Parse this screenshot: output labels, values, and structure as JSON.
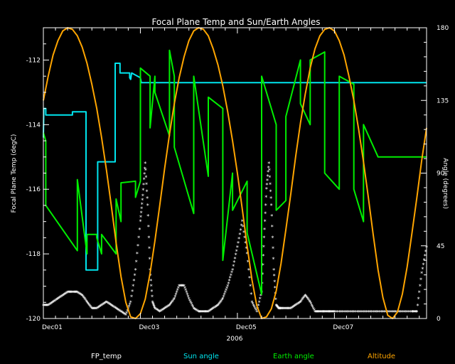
{
  "chart_data": {
    "type": "line",
    "title": "Focal Plane Temp and Sun/Earth Angles",
    "xlabel": "2006",
    "ylabel_left": "Focal Plane Temp (degC)",
    "ylabel_right": "Angle (degrees)",
    "xlim_days": [
      0,
      7.9
    ],
    "ylim_left": [
      -120,
      -111
    ],
    "ylim_right": [
      0,
      180
    ],
    "x_ticks": [
      {
        "day": 0,
        "label": "Dec01"
      },
      {
        "day": 2,
        "label": "Dec03"
      },
      {
        "day": 4,
        "label": "Dec05"
      },
      {
        "day": 6,
        "label": "Dec07"
      }
    ],
    "y_left_ticks": [
      -120,
      -118,
      -116,
      -114,
      -112
    ],
    "y_right_ticks": [
      0,
      45,
      90,
      135,
      180
    ],
    "grid": false,
    "legend": [
      "FP_temp",
      "Sun angle",
      "Earth angle",
      "Altitude"
    ],
    "colors": {
      "FP_temp": "#ffffff",
      "Sun angle": "#00e5ee",
      "Earth angle": "#00ee00",
      "Altitude": "#ffa500",
      "axes": "#ffffff"
    },
    "series": [
      {
        "name": "FP_temp",
        "axis": "left",
        "style": "points",
        "x": [
          0,
          0.1,
          0.2,
          0.3,
          0.4,
          0.5,
          0.6,
          0.7,
          0.8,
          0.9,
          1.0,
          1.1,
          1.2,
          1.3,
          1.4,
          1.5,
          1.6,
          1.7,
          1.8,
          1.9,
          2.0,
          2.05,
          2.1,
          2.15,
          2.2,
          2.25,
          2.3,
          2.4,
          2.5,
          2.6,
          2.7,
          2.8,
          2.9,
          3.0,
          3.1,
          3.2,
          3.3,
          3.4,
          3.5,
          3.6,
          3.7,
          3.8,
          3.9,
          4.0,
          4.1,
          4.2,
          4.3,
          4.4,
          4.5,
          4.55,
          4.6,
          4.65,
          4.7,
          4.75,
          4.8,
          4.85,
          4.9,
          5.0,
          5.1,
          5.2,
          5.3,
          5.4,
          5.5,
          5.6,
          5.7,
          5.8,
          5.9,
          6.0,
          6.2,
          6.4,
          6.6,
          6.8,
          7.0,
          7.2,
          7.4,
          7.6,
          7.7,
          7.8,
          7.9
        ],
        "y": [
          -119.6,
          -119.6,
          -119.5,
          -119.4,
          -119.3,
          -119.2,
          -119.2,
          -119.2,
          -119.3,
          -119.5,
          -119.7,
          -119.7,
          -119.6,
          -119.5,
          -119.6,
          -119.7,
          -119.8,
          -119.9,
          -119.5,
          -118.5,
          -117.0,
          -116.2,
          -115.2,
          -116.5,
          -118.5,
          -119.5,
          -119.7,
          -119.8,
          -119.7,
          -119.6,
          -119.4,
          -119.0,
          -119.0,
          -119.4,
          -119.7,
          -119.8,
          -119.8,
          -119.8,
          -119.7,
          -119.6,
          -119.4,
          -119.0,
          -118.5,
          -117.8,
          -117.0,
          -118.0,
          -119.5,
          -119.8,
          -119.2,
          -117.5,
          -116.0,
          -115.2,
          -116.5,
          -118.5,
          -119.6,
          -119.7,
          -119.7,
          -119.7,
          -119.7,
          -119.6,
          -119.5,
          -119.3,
          -119.5,
          -119.8,
          -119.8,
          -119.8,
          -119.8,
          -119.8,
          -119.8,
          -119.8,
          -119.8,
          -119.8,
          -119.8,
          -119.8,
          -119.8,
          -119.8,
          -119.8,
          -118.6,
          -117.8
        ]
      },
      {
        "name": "Sun angle",
        "axis": "right",
        "style": "line",
        "x": [
          0,
          0.01,
          0.05,
          0.05,
          0.6,
          0.6,
          0.88,
          0.88,
          1.12,
          1.12,
          1.48,
          1.48,
          1.58,
          1.58,
          1.78,
          1.78,
          1.8,
          1.82,
          1.82,
          2.0,
          2.02,
          2.02,
          2.25,
          2.25,
          2.3,
          2.3,
          3.1,
          3.1,
          3.3,
          3.3,
          3.95,
          3.95,
          4.0,
          4.05,
          4.1,
          4.1,
          4.5,
          4.5,
          4.85,
          4.85,
          5.5,
          5.5,
          6.0,
          6.0,
          6.15,
          6.15,
          6.4,
          6.4,
          7.9
        ],
        "y": [
          112,
          130,
          130,
          126,
          126,
          128,
          128,
          30,
          30,
          97,
          97,
          158,
          158,
          152,
          152,
          149,
          148,
          152,
          152,
          149,
          146,
          146,
          146,
          146,
          146,
          146,
          146,
          146,
          146,
          146,
          146,
          146,
          146,
          146,
          146,
          146,
          146,
          146,
          146,
          146,
          146,
          146,
          146,
          146,
          146,
          146,
          146,
          146,
          146
        ]
      },
      {
        "name": "Earth angle",
        "axis": "right",
        "style": "line",
        "x": [
          0,
          0.05,
          0.05,
          0.7,
          0.7,
          0.9,
          0.9,
          1.1,
          1.1,
          1.2,
          1.2,
          1.5,
          1.5,
          1.6,
          1.6,
          1.9,
          1.9,
          2.0,
          2.0,
          2.2,
          2.2,
          2.3,
          2.3,
          2.6,
          2.6,
          2.7,
          2.7,
          3.1,
          3.1,
          3.4,
          3.4,
          3.7,
          3.7,
          3.9,
          3.9,
          4.2,
          4.2,
          4.5,
          4.5,
          4.8,
          4.8,
          5.0,
          5.0,
          5.3,
          5.3,
          5.5,
          5.5,
          5.8,
          5.8,
          6.1,
          6.1,
          6.4,
          6.4,
          6.6,
          6.6,
          6.9,
          6.9,
          7.1,
          7.1,
          7.4,
          7.4,
          7.6,
          7.6,
          7.9
        ],
        "y": [
          115,
          110,
          70,
          42,
          86,
          40,
          52,
          52,
          50,
          40,
          52,
          40,
          74,
          60,
          84,
          85,
          75,
          85,
          155,
          150,
          118,
          150,
          140,
          113,
          166,
          150,
          106,
          65,
          150,
          88,
          137,
          130,
          36,
          90,
          67,
          85,
          53,
          15,
          150,
          120,
          67,
          73,
          125,
          160,
          133,
          120,
          160,
          165,
          90,
          80,
          150,
          145,
          80,
          60,
          120,
          100,
          100,
          100,
          100,
          100,
          100,
          100,
          100,
          100
        ]
      },
      {
        "name": "Altitude",
        "axis": "right",
        "style": "line",
        "x": [
          0,
          0.1,
          0.2,
          0.3,
          0.4,
          0.5,
          0.6,
          0.7,
          0.8,
          0.9,
          1.0,
          1.1,
          1.2,
          1.3,
          1.4,
          1.5,
          1.6,
          1.7,
          1.8,
          1.9,
          2.0,
          2.1,
          2.2,
          2.3,
          2.4,
          2.5,
          2.6,
          2.7,
          2.8,
          2.9,
          3.0,
          3.1,
          3.2,
          3.3,
          3.4,
          3.5,
          3.6,
          3.7,
          3.8,
          3.9,
          4.0,
          4.1,
          4.2,
          4.3,
          4.4,
          4.5,
          4.6,
          4.7,
          4.8,
          4.9,
          5.0,
          5.1,
          5.2,
          5.3,
          5.4,
          5.5,
          5.6,
          5.7,
          5.8,
          5.9,
          6.0,
          6.1,
          6.2,
          6.3,
          6.4,
          6.5,
          6.6,
          6.7,
          6.8,
          6.9,
          7.0,
          7.1,
          7.2,
          7.3,
          7.4,
          7.5,
          7.6,
          7.7,
          7.8,
          7.9
        ],
        "y": [
          135,
          150,
          163,
          172,
          178,
          180,
          179,
          175,
          168,
          158,
          145,
          130,
          112,
          92,
          70,
          47,
          26,
          10,
          1,
          0,
          3,
          12,
          28,
          48,
          70,
          93,
          114,
          133,
          149,
          162,
          172,
          178,
          180,
          179,
          175,
          167,
          157,
          144,
          128,
          110,
          90,
          68,
          45,
          24,
          8,
          0,
          1,
          6,
          17,
          34,
          55,
          77,
          100,
          121,
          139,
          155,
          167,
          175,
          179,
          180,
          178,
          172,
          163,
          150,
          135,
          117,
          97,
          75,
          52,
          30,
          13,
          2,
          0,
          4,
          15,
          32,
          53,
          75,
          98,
          118
        ]
      }
    ]
  },
  "legend_labels": {
    "fp_temp": "FP_temp",
    "sun_angle": "Sun angle",
    "earth_angle": "Earth angle",
    "altitude": "Altitude"
  }
}
